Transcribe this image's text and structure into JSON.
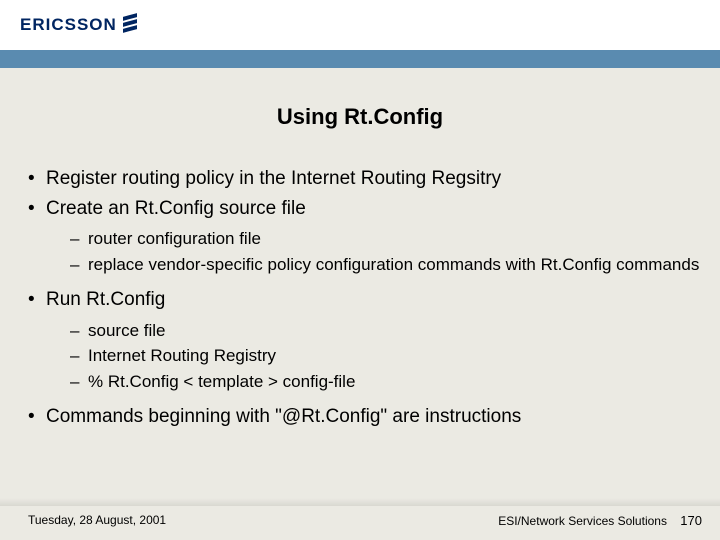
{
  "logo": {
    "text": "ERICSSON"
  },
  "title": "Using Rt.Config",
  "bullets": {
    "b1": "Register routing policy in the Internet Routing Regsitry",
    "b2": "Create an Rt.Config source file",
    "b2s1": "router configuration file",
    "b2s2": "replace vendor-specific policy configuration commands with Rt.Config commands",
    "b3": "Run Rt.Config",
    "b3s1": "source file",
    "b3s2": "Internet Routing Registry",
    "b3s3": "% Rt.Config < template > config-file",
    "b4": "Commands beginning with \"@Rt.Config\" are instructions"
  },
  "footer": {
    "date": "Tuesday, 28 August, 2001",
    "org": "ESI/Network Services Solutions",
    "page": "170"
  },
  "colors": {
    "background": "#ebeae3",
    "header_bg": "#ffffff",
    "bar": "#5a8bb0",
    "logo": "#002561",
    "text": "#000000"
  }
}
